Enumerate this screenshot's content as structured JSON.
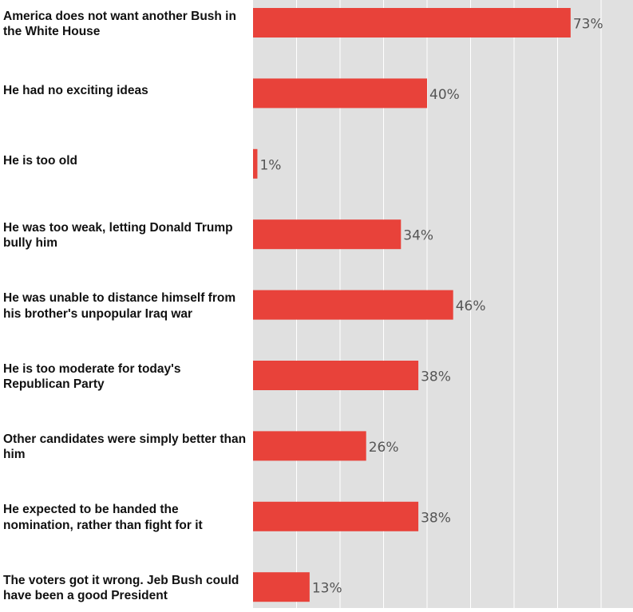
{
  "chart_data": {
    "type": "bar",
    "orientation": "horizontal",
    "title": "",
    "xlabel": "",
    "ylabel": "",
    "xlim": [
      0,
      86
    ],
    "grid": true,
    "legend": "none",
    "value_suffix": "%",
    "categories": [
      "America does not want another Bush in the White House",
      "He had no exciting ideas",
      "He is too old",
      "He was too weak, letting Donald Trump bully him",
      "He was unable to distance himself from his brother's unpopular Iraq war",
      "He is too moderate for today's Republican Party",
      "Other candidates were simply better than him",
      "He expected to be handed the nomination, rather than fight for it",
      "The voters got it wrong. Jeb Bush could have been a good President"
    ],
    "values": [
      73,
      40,
      1,
      34,
      46,
      38,
      26,
      38,
      13
    ],
    "value_labels": [
      "73%",
      "40%",
      "1%",
      "34%",
      "46%",
      "38%",
      "26%",
      "38%",
      "13%"
    ],
    "colors": {
      "bar": "#e8423a",
      "plot_background": "#e0e0e0",
      "gridline": "#ffffff",
      "value_label": "#555555",
      "category_label": "#111111"
    }
  }
}
